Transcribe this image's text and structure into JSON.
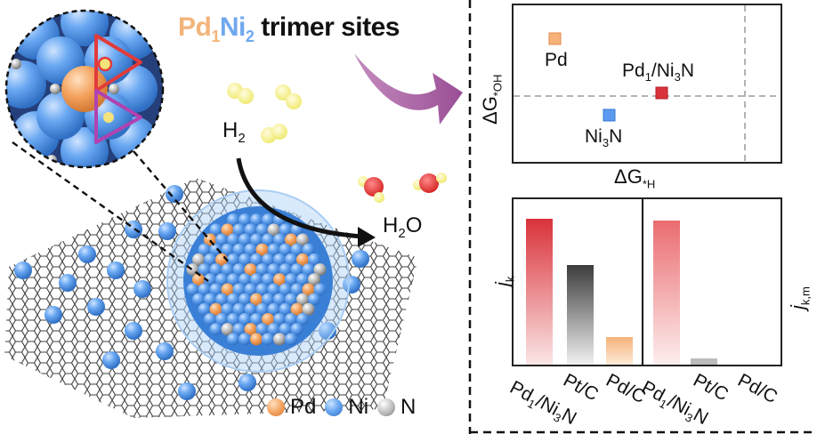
{
  "title": {
    "metal_a": "Pd",
    "sub_a": "1",
    "metal_b": "Ni",
    "sub_b": "2",
    "suffix": "trimer sites"
  },
  "molecules": {
    "h2_main": "H",
    "h2_sub": "2",
    "h2o_main": "H",
    "h2o_sub": "2",
    "h2o_tail": "O"
  },
  "legend": [
    {
      "label": "Pd",
      "color": "#f3a05a",
      "icon": "pd-atom-icon"
    },
    {
      "label": "Ni",
      "color": "#4a92e8",
      "icon": "ni-atom-icon"
    },
    {
      "label": "N",
      "color": "#a9a9a9",
      "icon": "n-atom-icon"
    }
  ],
  "scatter": {
    "xlabel_main": "ΔG",
    "xlabel_sub": "*H",
    "ylabel_main": "ΔG",
    "ylabel_sub": "*OH",
    "points": [
      {
        "label": "Pd",
        "color": "#f6b27a"
      },
      {
        "label": "Pd1/Ni3N",
        "color": "#d9323a"
      },
      {
        "label": "Ni3N",
        "color": "#5b9af0"
      }
    ]
  },
  "bar_left": {
    "ylabel_main": "j",
    "ylabel_sub": "k",
    "categories": [
      "Pd1/Ni3N",
      "Pt/C",
      "Pd/C"
    ]
  },
  "bar_right": {
    "ylabel_main": "j",
    "ylabel_sub": "k,m",
    "categories": [
      "Pd1/Ni3N",
      "Pt/C",
      "Pd/C"
    ]
  },
  "colors": {
    "ni": "#4a92e8",
    "pd": "#f3a05a",
    "n": "#a9a9a9",
    "arrow": "#b066a8",
    "pd1ni3n_bar": "#d9323a",
    "ptc_bar": "#3c3c3c",
    "pdc_bar": "#f6b27a"
  }
}
